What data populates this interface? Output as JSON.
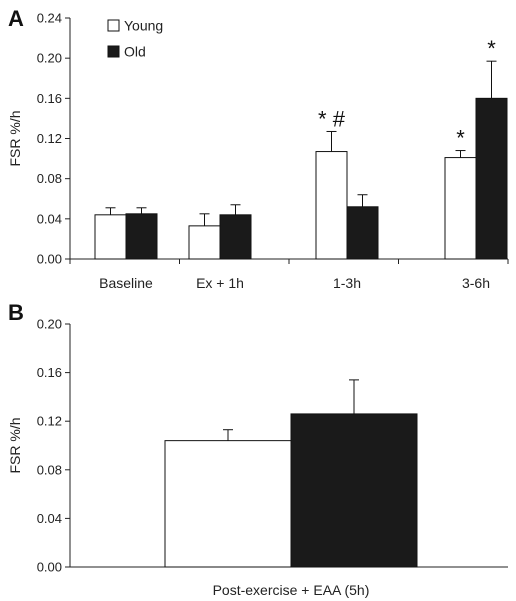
{
  "chart_data": [
    {
      "panel_label": "A",
      "type": "bar",
      "ylabel": "FSR %/h",
      "ylim": [
        0,
        0.24
      ],
      "yticks": [
        "0.00",
        "0.04",
        "0.08",
        "0.12",
        "0.16",
        "0.20",
        "0.24"
      ],
      "categories": [
        "Baseline",
        "Ex + 1h",
        "1-3h",
        "3-6h"
      ],
      "legend_position": "top-left",
      "series": [
        {
          "name": "Young",
          "fill": "#ffffff",
          "values": [
            0.044,
            0.033,
            0.107,
            0.101
          ],
          "errors": [
            0.007,
            0.012,
            0.02,
            0.007
          ],
          "annotations": [
            "",
            "",
            "* #",
            "*"
          ]
        },
        {
          "name": "Old",
          "fill": "#1a1a1a",
          "values": [
            0.045,
            0.044,
            0.052,
            0.16
          ],
          "errors": [
            0.006,
            0.01,
            0.012,
            0.037
          ],
          "annotations": [
            "",
            "",
            "",
            "*"
          ]
        }
      ]
    },
    {
      "panel_label": "B",
      "type": "bar",
      "ylabel": "FSR %/h",
      "ylim": [
        0,
        0.2
      ],
      "yticks": [
        "0.00",
        "0.04",
        "0.08",
        "0.12",
        "0.16",
        "0.20"
      ],
      "categories": [
        "Post-exercise + EAA (5h)"
      ],
      "series": [
        {
          "name": "Young",
          "fill": "#ffffff",
          "values": [
            0.104
          ],
          "errors": [
            0.009
          ]
        },
        {
          "name": "Old",
          "fill": "#1a1a1a",
          "values": [
            0.126
          ],
          "errors": [
            0.028
          ]
        }
      ]
    }
  ]
}
